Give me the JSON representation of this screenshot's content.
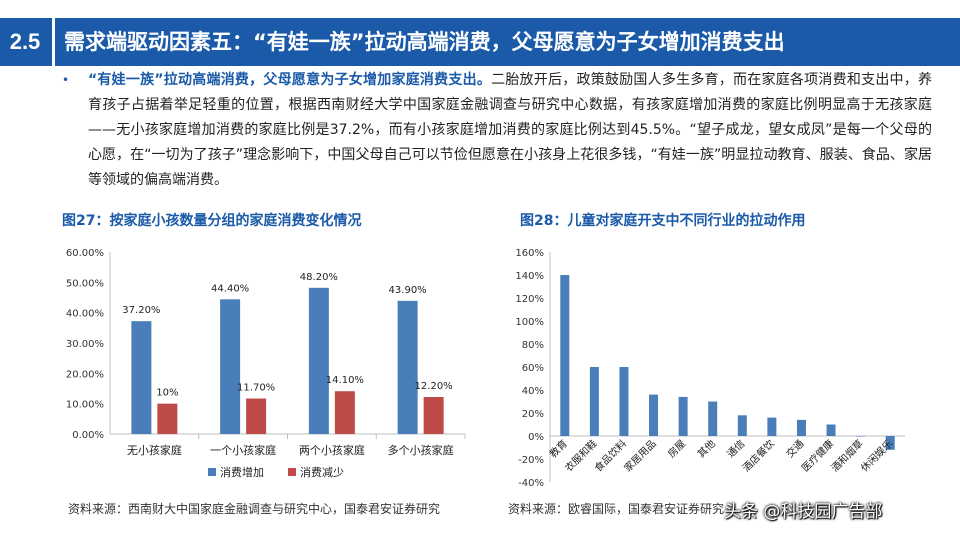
{
  "header": {
    "section_number": "2.5",
    "title": "需求端驱动因素五：“有娃一族”拉动高端消费，父母愿意为子女增加消费支出"
  },
  "body": {
    "bullet": "•",
    "lead": "“有娃一族”拉动高端消费，父母愿意为子女增加家庭消费支出。",
    "text": "二胎放开后，政策鼓励国人多生多育，而在家庭各项消费和支出中，养育孩子占据着举足轻重的位置，根据西南财经大学中国家庭金融调查与研究中心数据，有孩家庭增加消费的家庭比例明显高于无孩家庭——无小孩家庭增加消费的家庭比例是37.2%，而有小孩家庭增加消费的家庭比例达到45.5%。“望子成龙，望女成凤”是每一个父母的心愿，在“一切为了孩子”理念影响下，中国父母自己可以节俭但愿意在小孩身上花很多钱，“有娃一族”明显拉动教育、服装、食品、家居等领域的偏高端消费。"
  },
  "colors": {
    "header_bg": "#1a5aa8",
    "series_increase": "#4a7ebb",
    "series_decrease": "#be4b48",
    "fig_title": "#1a5aa8"
  },
  "figures": {
    "fig27_title": "图27：按家庭小孩数量分组的家庭消费变化情况",
    "fig27_source": "资料来源：西南财大中国家庭金融调查与研究中心，国泰君安证券研究",
    "fig28_title": "图28：儿童对家庭开支中不同行业的拉动作用",
    "fig28_source": "资料来源：欧睿国际，国泰君安证券研究"
  },
  "watermark": "头条 @科技园广告部",
  "chart_data": [
    {
      "type": "bar",
      "title": "图27：按家庭小孩数量分组的家庭消费变化情况",
      "categories": [
        "无小孩家庭",
        "一个小孩家庭",
        "两个小孩家庭",
        "多个小孩家庭"
      ],
      "series": [
        {
          "name": "消费增加",
          "values": [
            37.2,
            44.4,
            48.2,
            43.9
          ],
          "labels": [
            "37.20%",
            "44.40%",
            "48.20%",
            "43.90%"
          ]
        },
        {
          "name": "消费减少",
          "values": [
            10,
            11.7,
            14.1,
            12.2
          ],
          "labels": [
            "10%",
            "11.70%",
            "14.10%",
            "12.20%"
          ]
        }
      ],
      "ylim": [
        0,
        60
      ],
      "yticks": [
        "0.00%",
        "10.00%",
        "20.00%",
        "30.00%",
        "40.00%",
        "50.00%",
        "60.00%"
      ],
      "legend_position": "bottom",
      "grid": false
    },
    {
      "type": "bar",
      "title": "图28：儿童对家庭开支中不同行业的拉动作用",
      "categories": [
        "教育",
        "衣服和鞋",
        "食品饮料",
        "家居用品",
        "房屋",
        "其他",
        "通信",
        "酒店餐饮",
        "交通",
        "医疗健康",
        "酒和烟草",
        "休闲娱乐"
      ],
      "values": [
        140,
        60,
        60,
        36,
        34,
        30,
        18,
        16,
        14,
        10,
        0,
        -12
      ],
      "ylim": [
        -40,
        160
      ],
      "yticks": [
        "-40%",
        "-20%",
        "0%",
        "20%",
        "40%",
        "60%",
        "80%",
        "100%",
        "120%",
        "140%",
        "160%"
      ],
      "grid": false
    }
  ]
}
